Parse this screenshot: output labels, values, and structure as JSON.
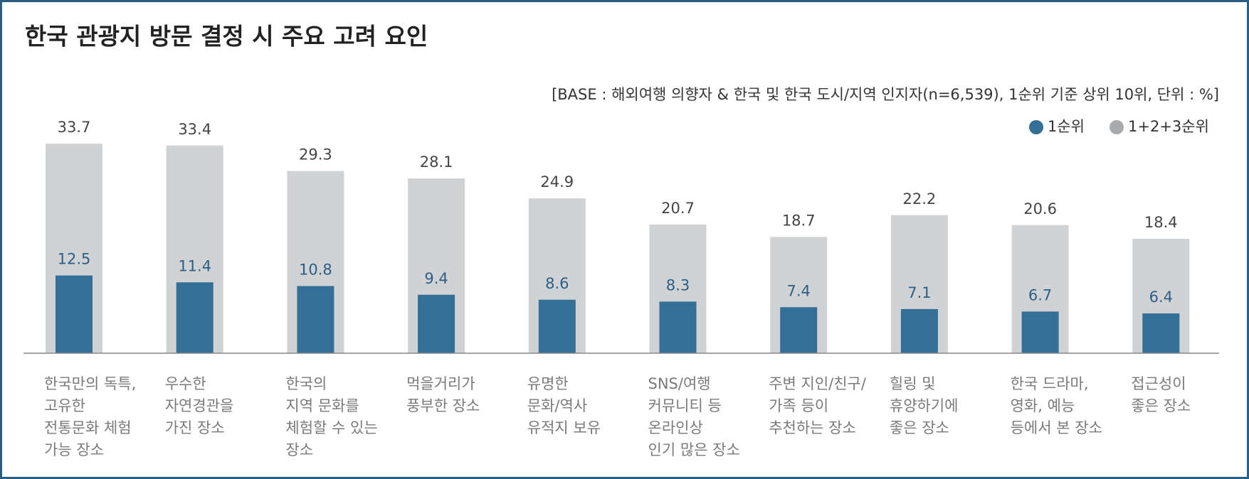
{
  "chart_data": {
    "type": "bar",
    "title": "한국 관광지 방문 결정 시 주요 고려 요인",
    "subtitle": "[BASE : 해외여행 의향자 & 한국 및 한국 도시/지역 인지자(n=6,539), 1순위 기준 상위 10위, 단위 : %]",
    "categories": [
      "한국만의 독특,\n고유한\n전통문화 체험\n가능 장소",
      "우수한\n자연경관을\n가진 장소",
      "한국의\n지역 문화를\n체험할 수 있는\n장소",
      "먹을거리가\n풍부한 장소",
      "유명한\n문화/역사\n유적지 보유",
      "SNS/여행\n커뮤니티 등\n온라인상\n인기 많은 장소",
      "주변 지인/친구/\n가족 등이\n추천하는 장소",
      "힐링 및\n휴양하기에\n좋은 장소",
      "한국 드라마,\n영화, 예능\n등에서 본 장소",
      "접근성이\n좋은 장소"
    ],
    "series": [
      {
        "name": "1+2+3순위",
        "color": "#d1d2d4",
        "values": [
          33.7,
          33.4,
          29.3,
          28.1,
          24.9,
          20.7,
          18.7,
          22.2,
          20.6,
          18.4
        ]
      },
      {
        "name": "1순위",
        "color": "#336f96",
        "values": [
          12.5,
          11.4,
          10.8,
          9.4,
          8.6,
          8.3,
          7.4,
          7.1,
          6.7,
          6.4
        ]
      }
    ],
    "legend": "top-right"
  }
}
